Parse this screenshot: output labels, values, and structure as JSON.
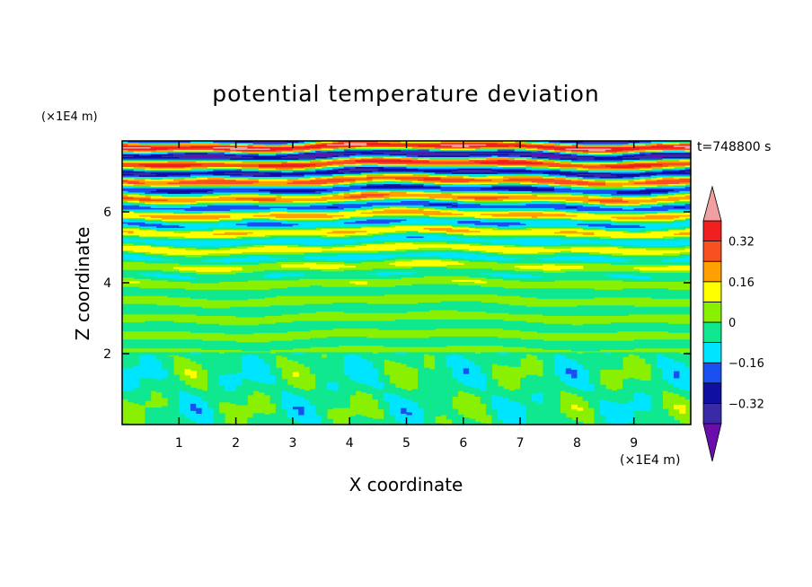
{
  "chart_data": {
    "type": "heatmap",
    "title": "potential temperature deviation",
    "xlabel": "X coordinate",
    "ylabel": "Z coordinate",
    "x_unit": "(×1E4 m)",
    "y_unit": "(×1E4 m)",
    "time_label": "t=748800 s",
    "xlim": [
      0,
      10
    ],
    "ylim": [
      0,
      8
    ],
    "x_ticks": [
      "1",
      "2",
      "3",
      "4",
      "5",
      "6",
      "7",
      "8",
      "9"
    ],
    "y_ticks": [
      "2",
      "4",
      "6"
    ],
    "colorbar": {
      "levels": [
        -0.4,
        -0.32,
        -0.24,
        -0.16,
        -0.08,
        0,
        0.08,
        0.16,
        0.24,
        0.32,
        0.4
      ],
      "labels": [
        "−0.32",
        "−0.16",
        "0",
        "0.16",
        "0.32"
      ],
      "label_values": [
        -0.32,
        -0.16,
        0,
        0.16,
        0.32
      ],
      "colors": [
        "#6a0dad",
        "#3a2aa8",
        "#1010a0",
        "#1a4ff0",
        "#00e5ff",
        "#10e890",
        "#88f000",
        "#ffff00",
        "#ffa000",
        "#f85020",
        "#f02020",
        "#f0a0a0"
      ],
      "extend": "both"
    }
  }
}
